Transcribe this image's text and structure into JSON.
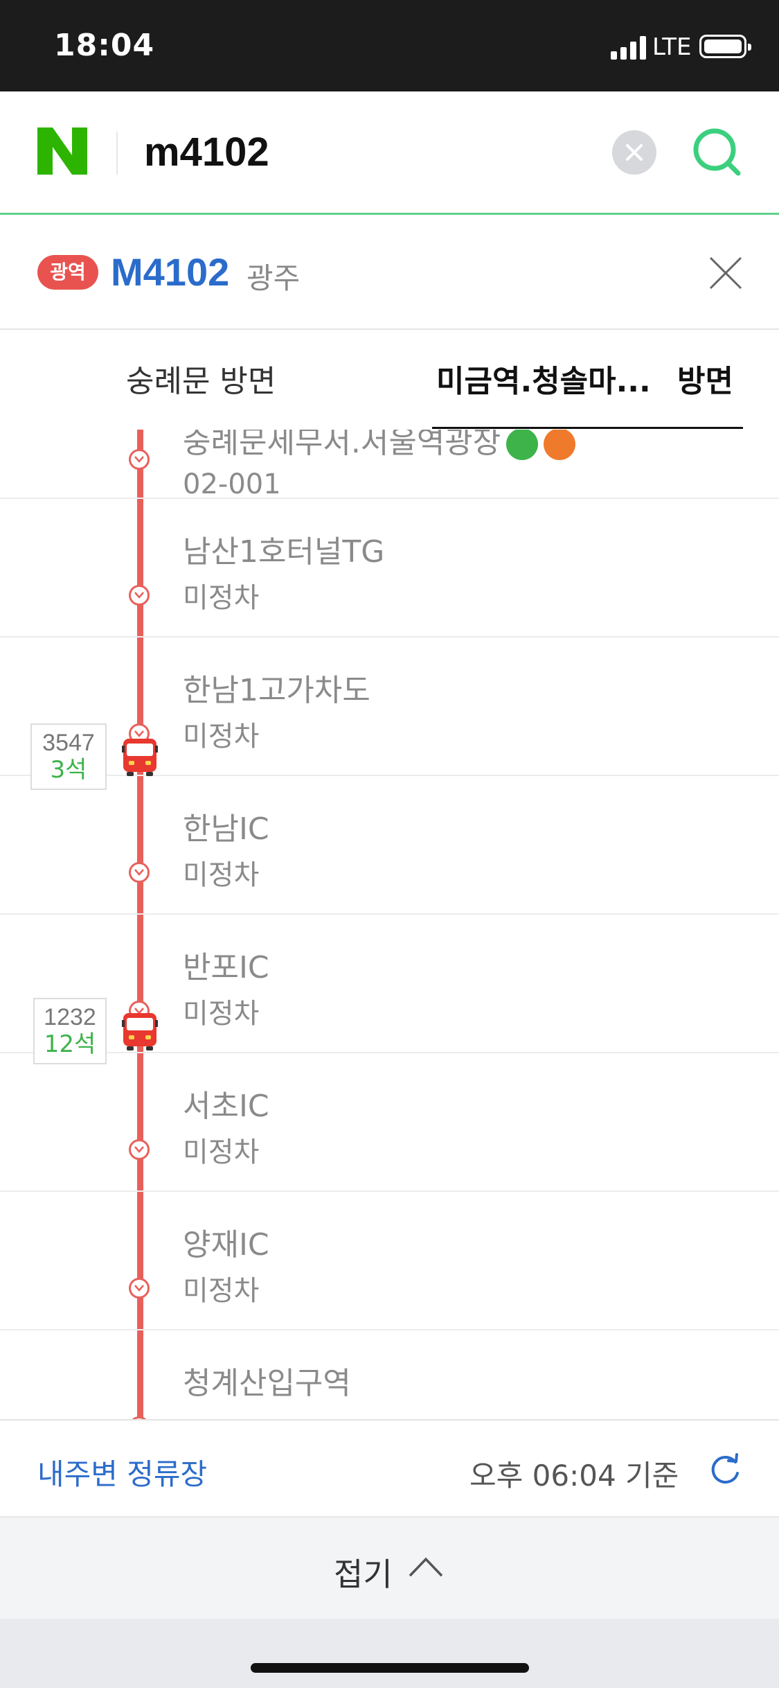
{
  "status_bar": {
    "time": "18:04",
    "network": "LTE"
  },
  "search": {
    "query": "m4102",
    "logo": "N"
  },
  "route": {
    "badge": "광역",
    "number": "M4102",
    "region": "광주",
    "color": "#2b6ccb",
    "badge_color": "#e9534f"
  },
  "tabs": [
    {
      "label": "숭례문 방면",
      "selected": false
    },
    {
      "label": "미금역.청솔마...",
      "suffix": "방면",
      "selected": true
    }
  ],
  "stops": [
    {
      "name": "숭례문세무서.서울역광장",
      "sub": "02-001",
      "transfer_colors": [
        "#3db34a",
        "#f07a2b"
      ]
    },
    {
      "name": "남산1호터널TG",
      "sub": "미정차"
    },
    {
      "name": "한남1고가차도",
      "sub": "미정차",
      "bus": {
        "plate": "3547",
        "seats": "3석"
      }
    },
    {
      "name": "한남IC",
      "sub": "미정차"
    },
    {
      "name": "반포IC",
      "sub": "미정차",
      "bus": {
        "plate": "1232",
        "seats": "12석"
      }
    },
    {
      "name": "서초IC",
      "sub": "미정차"
    },
    {
      "name": "양재IC",
      "sub": "미정차"
    },
    {
      "name": "청계산입구역",
      "sub": ""
    }
  ],
  "bottom": {
    "nearby_label": "내주변 정류장",
    "updated": "오후 06:04 기준"
  },
  "collapse": {
    "label": "접기"
  },
  "icons": {
    "logo": "naver-logo-icon",
    "clear": "clear-icon",
    "search": "search-icon",
    "close": "close-icon",
    "bus": "bus-icon",
    "stop": "chevron-down-icon",
    "refresh": "refresh-icon",
    "collapse": "chevron-up-icon"
  },
  "colors": {
    "route_line": "#e8605b",
    "seat_text": "#3db34a",
    "accent_green": "#5fd08a",
    "link_blue": "#2b6ccb"
  }
}
